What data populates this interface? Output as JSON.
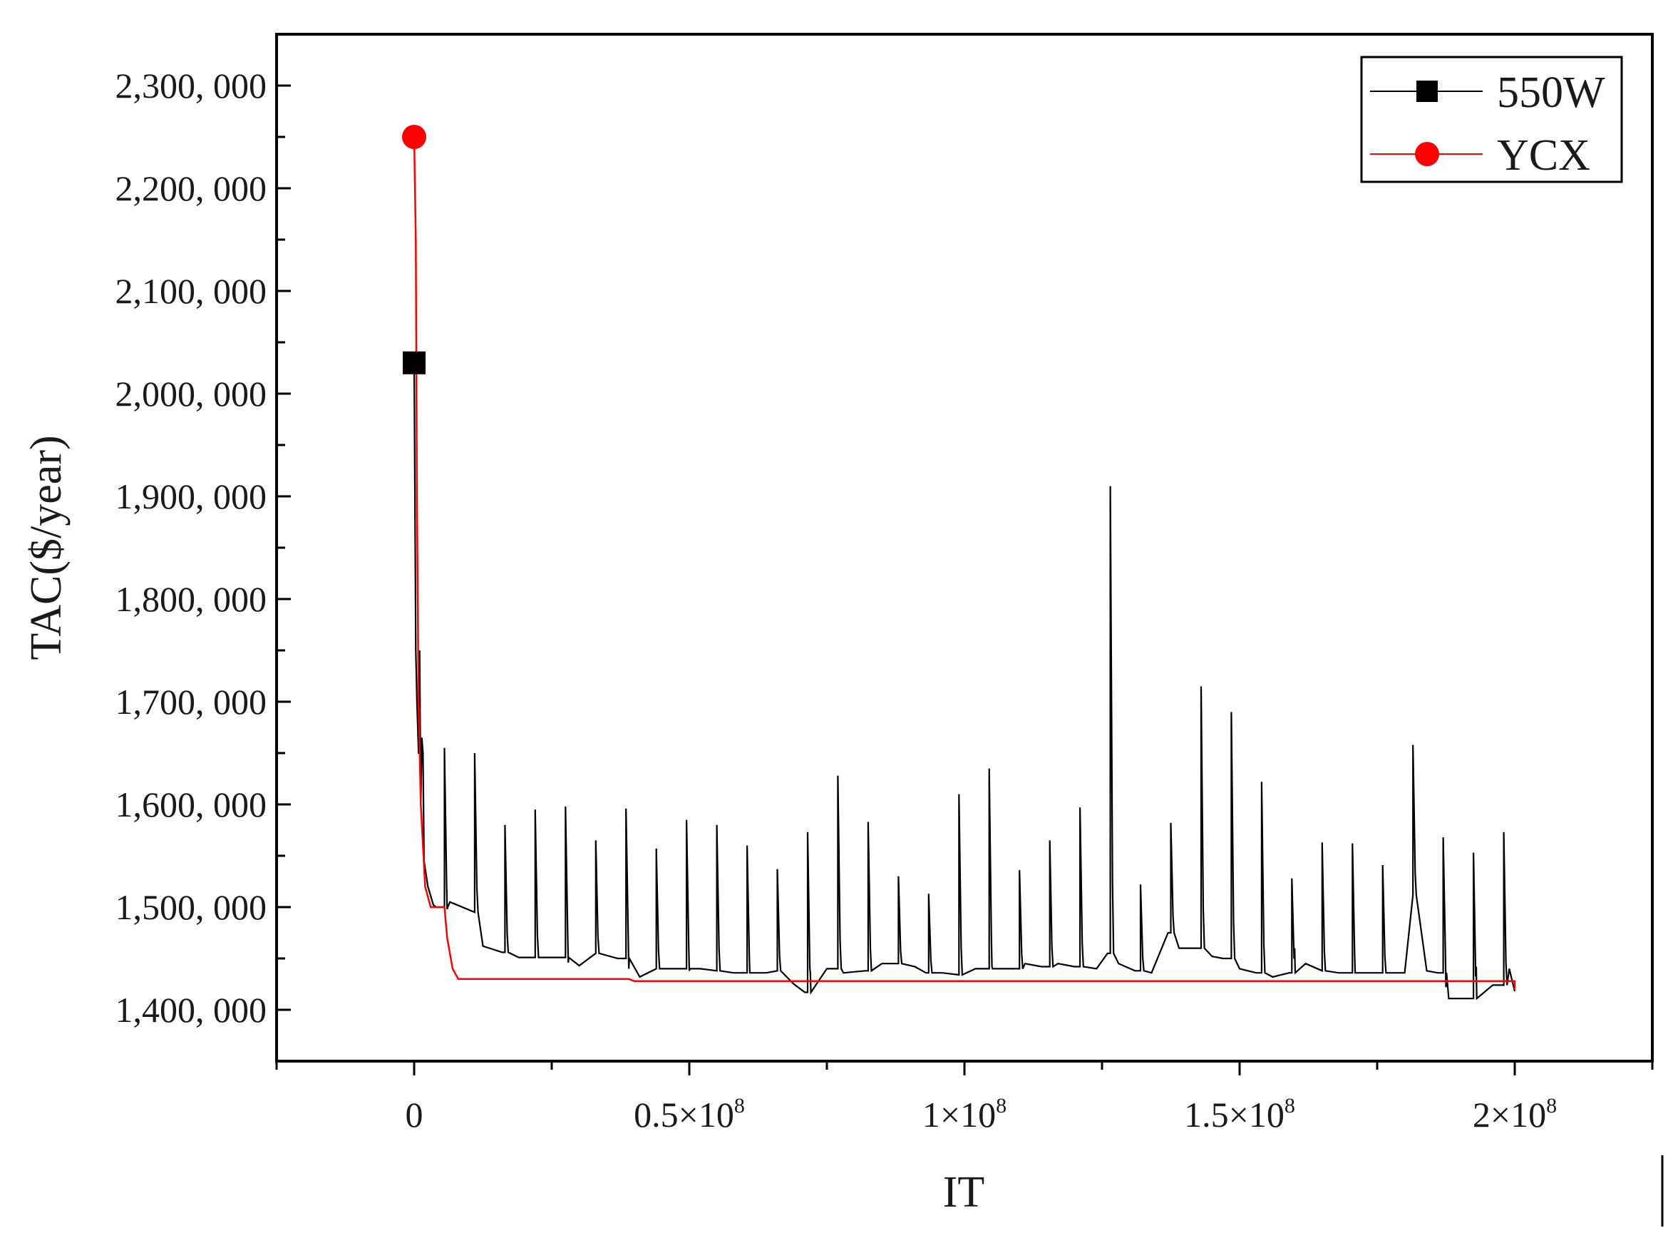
{
  "chart_data": {
    "type": "line",
    "title": "",
    "xlabel": "IT",
    "ylabel": "TAC($/year)",
    "xlim": [
      -25000000,
      225000000
    ],
    "ylim": [
      1350000,
      2350000
    ],
    "y_ticks": [
      {
        "value": 1400000,
        "label": "1,400, 000"
      },
      {
        "value": 1500000,
        "label": "1,500, 000"
      },
      {
        "value": 1600000,
        "label": "1,600, 000"
      },
      {
        "value": 1700000,
        "label": "1,700, 000"
      },
      {
        "value": 1800000,
        "label": "1,800, 000"
      },
      {
        "value": 1900000,
        "label": "1,900, 000"
      },
      {
        "value": 2000000,
        "label": "2,000, 000"
      },
      {
        "value": 2100000,
        "label": "2,100, 000"
      },
      {
        "value": 2200000,
        "label": "2,200, 000"
      },
      {
        "value": 2300000,
        "label": "2,300, 000"
      }
    ],
    "x_ticks": [
      {
        "value": 0,
        "base": "0",
        "exp": ""
      },
      {
        "value": 50000000,
        "base": "0.5×10",
        "exp": "8"
      },
      {
        "value": 100000000,
        "base": "1×10",
        "exp": "8"
      },
      {
        "value": 150000000,
        "base": "1.5×10",
        "exp": "8"
      },
      {
        "value": 200000000,
        "base": "2×10",
        "exp": "8"
      }
    ],
    "legend": {
      "position": "top-right"
    },
    "series": [
      {
        "name": "550W",
        "color": "#000000",
        "marker": "square",
        "marker_point": [
          0,
          2030000
        ],
        "base": [
          [
            0,
            2030000
          ],
          [
            300000,
            1750000
          ],
          [
            500000,
            1700000
          ],
          [
            800000,
            1650000
          ],
          [
            1200000,
            1600000
          ],
          [
            1800000,
            1545000
          ],
          [
            2500000,
            1520000
          ],
          [
            3500000,
            1502000
          ],
          [
            4000000,
            1500000
          ],
          [
            6000000,
            1498000
          ],
          [
            6500000,
            1505000
          ],
          [
            11000000,
            1495000
          ],
          [
            12500000,
            1462000
          ],
          [
            16000000,
            1456000
          ],
          [
            19000000,
            1451000
          ],
          [
            22000000,
            1451000
          ],
          [
            24000000,
            1451000
          ],
          [
            28000000,
            1446000
          ],
          [
            30000000,
            1443000
          ],
          [
            33000000,
            1455000
          ],
          [
            37000000,
            1450000
          ],
          [
            39000000,
            1440000
          ],
          [
            41000000,
            1432000
          ],
          [
            44000000,
            1440000
          ],
          [
            47000000,
            1440000
          ],
          [
            50000000,
            1438000
          ],
          [
            52000000,
            1440000
          ],
          [
            55000000,
            1438000
          ],
          [
            58000000,
            1436000
          ],
          [
            61000000,
            1436000
          ],
          [
            64000000,
            1436000
          ],
          [
            66000000,
            1438000
          ],
          [
            69000000,
            1425000
          ],
          [
            71000000,
            1417000
          ],
          [
            72000000,
            1436000
          ],
          [
            75000000,
            1440000
          ],
          [
            78000000,
            1436000
          ],
          [
            82000000,
            1438000
          ],
          [
            85000000,
            1445000
          ],
          [
            88000000,
            1445000
          ],
          [
            91000000,
            1442000
          ],
          [
            93000000,
            1436000
          ],
          [
            96000000,
            1436000
          ],
          [
            99000000,
            1434000
          ],
          [
            102000000,
            1440000
          ],
          [
            105000000,
            1442000
          ],
          [
            108000000,
            1440000
          ],
          [
            111000000,
            1445000
          ],
          [
            114000000,
            1442000
          ],
          [
            117000000,
            1445000
          ],
          [
            120000000,
            1442000
          ],
          [
            124000000,
            1440000
          ],
          [
            126000000,
            1455000
          ],
          [
            128000000,
            1445000
          ],
          [
            131000000,
            1438000
          ],
          [
            134000000,
            1436000
          ],
          [
            137000000,
            1475000
          ],
          [
            139000000,
            1460000
          ],
          [
            142000000,
            1460000
          ],
          [
            145000000,
            1452000
          ],
          [
            147000000,
            1450000
          ],
          [
            150000000,
            1440000
          ],
          [
            153000000,
            1436000
          ],
          [
            156000000,
            1432000
          ],
          [
            159000000,
            1436000
          ],
          [
            160000000,
            1460000
          ],
          [
            162000000,
            1445000
          ],
          [
            165000000,
            1438000
          ],
          [
            168000000,
            1436000
          ],
          [
            171000000,
            1436000
          ],
          [
            174000000,
            1436000
          ],
          [
            177000000,
            1436000
          ],
          [
            180000000,
            1436000
          ],
          [
            181500000,
            1512000
          ],
          [
            184000000,
            1438000
          ],
          [
            186000000,
            1436000
          ],
          [
            187500000,
            1422000
          ],
          [
            188000000,
            1411000
          ],
          [
            192000000,
            1411000
          ],
          [
            193000000,
            1442000
          ],
          [
            196000000,
            1424000
          ],
          [
            198000000,
            1424000
          ],
          [
            199000000,
            1440000
          ],
          [
            200000000,
            1418000
          ]
        ],
        "spikes": [
          [
            1000000,
            1750000
          ],
          [
            5500000,
            1655000
          ],
          [
            11000000,
            1650000
          ],
          [
            16500000,
            1580000
          ],
          [
            22000000,
            1595000
          ],
          [
            27500000,
            1598000
          ],
          [
            33000000,
            1565000
          ],
          [
            38500000,
            1596000
          ],
          [
            44000000,
            1557000
          ],
          [
            49500000,
            1585000
          ],
          [
            55000000,
            1580000
          ],
          [
            60500000,
            1560000
          ],
          [
            66000000,
            1537000
          ],
          [
            71500000,
            1573000
          ],
          [
            77000000,
            1628000
          ],
          [
            82500000,
            1583000
          ],
          [
            88000000,
            1530000
          ],
          [
            93500000,
            1513000
          ],
          [
            99000000,
            1610000
          ],
          [
            104500000,
            1635000
          ],
          [
            110000000,
            1536000
          ],
          [
            115500000,
            1565000
          ],
          [
            121000000,
            1597000
          ],
          [
            126500000,
            1910000
          ],
          [
            132000000,
            1522000
          ],
          [
            137500000,
            1582000
          ],
          [
            143000000,
            1715000
          ],
          [
            148500000,
            1690000
          ],
          [
            154000000,
            1622000
          ],
          [
            159500000,
            1528000
          ],
          [
            165000000,
            1563000
          ],
          [
            170500000,
            1562000
          ],
          [
            176000000,
            1541000
          ],
          [
            181500000,
            1658000
          ],
          [
            187000000,
            1568000
          ],
          [
            192500000,
            1553000
          ],
          [
            198000000,
            1573000
          ]
        ]
      },
      {
        "name": "YCX",
        "color": "#ff0000",
        "marker": "circle",
        "marker_point": [
          0,
          2250000
        ],
        "points": [
          [
            0,
            2250000
          ],
          [
            300000,
            2150000
          ],
          [
            500000,
            1900000
          ],
          [
            800000,
            1700000
          ],
          [
            1200000,
            1600000
          ],
          [
            2000000,
            1520000
          ],
          [
            3000000,
            1500000
          ],
          [
            5500000,
            1500000
          ],
          [
            6000000,
            1470000
          ],
          [
            7000000,
            1440000
          ],
          [
            8000000,
            1430000
          ],
          [
            39000000,
            1430000
          ],
          [
            40000000,
            1428000
          ],
          [
            200000000,
            1428000
          ],
          [
            200000000,
            1420000
          ]
        ]
      }
    ]
  }
}
